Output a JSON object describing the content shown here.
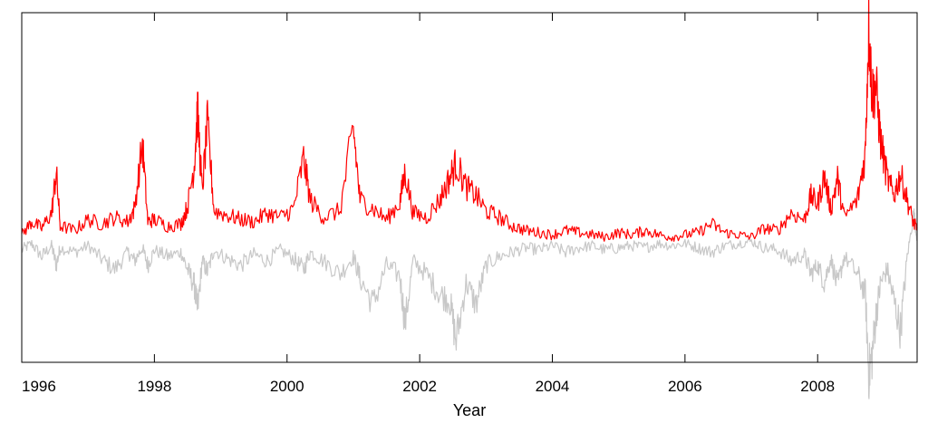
{
  "chart_data": {
    "type": "line",
    "title": "",
    "xlabel": "Year",
    "ylabel": "",
    "xlim": [
      1996,
      2009.5
    ],
    "ylim": [
      -1.0,
      1.0
    ],
    "grid": false,
    "legend": "none",
    "x_ticks": [
      1996,
      1998,
      2000,
      2002,
      2004,
      2006,
      2008
    ],
    "x_tick_labels": [
      "1996",
      "1998",
      "2000",
      "2002",
      "2004",
      "2006",
      "2008"
    ],
    "y_ticks_shown": false,
    "colors": {
      "series_a": "#ff0000",
      "series_b": "#c8c8c8",
      "axes": "#000000"
    },
    "series": [
      {
        "color": "#ff0000",
        "points": [
          [
            1996.0,
            0.02
          ],
          [
            1996.15,
            0.08
          ],
          [
            1996.3,
            0.05
          ],
          [
            1996.45,
            0.12
          ],
          [
            1996.52,
            0.31
          ],
          [
            1996.58,
            0.06
          ],
          [
            1996.8,
            0.04
          ],
          [
            1997.0,
            0.09
          ],
          [
            1997.2,
            0.07
          ],
          [
            1997.4,
            0.1
          ],
          [
            1997.6,
            0.08
          ],
          [
            1997.7,
            0.14
          ],
          [
            1997.82,
            0.44
          ],
          [
            1997.9,
            0.08
          ],
          [
            1998.0,
            0.09
          ],
          [
            1998.2,
            0.06
          ],
          [
            1998.4,
            0.07
          ],
          [
            1998.5,
            0.15
          ],
          [
            1998.6,
            0.34
          ],
          [
            1998.65,
            0.59
          ],
          [
            1998.72,
            0.22
          ],
          [
            1998.8,
            0.53
          ],
          [
            1998.9,
            0.13
          ],
          [
            1999.1,
            0.11
          ],
          [
            1999.3,
            0.09
          ],
          [
            1999.5,
            0.08
          ],
          [
            1999.7,
            0.12
          ],
          [
            1999.9,
            0.1
          ],
          [
            2000.1,
            0.14
          ],
          [
            2000.25,
            0.37
          ],
          [
            2000.35,
            0.18
          ],
          [
            2000.55,
            0.1
          ],
          [
            2000.8,
            0.13
          ],
          [
            2001.0,
            0.51
          ],
          [
            2001.1,
            0.18
          ],
          [
            2001.3,
            0.14
          ],
          [
            2001.5,
            0.09
          ],
          [
            2001.7,
            0.17
          ],
          [
            2001.78,
            0.31
          ],
          [
            2001.9,
            0.12
          ],
          [
            2002.1,
            0.1
          ],
          [
            2002.3,
            0.18
          ],
          [
            2002.45,
            0.28
          ],
          [
            2002.55,
            0.35
          ],
          [
            2002.7,
            0.24
          ],
          [
            2002.85,
            0.2
          ],
          [
            2003.0,
            0.13
          ],
          [
            2003.2,
            0.1
          ],
          [
            2003.4,
            0.06
          ],
          [
            2003.6,
            0.04
          ],
          [
            2003.8,
            0.03
          ],
          [
            2004.0,
            0.02
          ],
          [
            2004.2,
            0.04
          ],
          [
            2004.4,
            0.03
          ],
          [
            2004.6,
            0.02
          ],
          [
            2004.8,
            0.01
          ],
          [
            2005.0,
            0.03
          ],
          [
            2005.2,
            0.02
          ],
          [
            2005.4,
            0.04
          ],
          [
            2005.6,
            0.02
          ],
          [
            2005.8,
            0.01
          ],
          [
            2006.0,
            0.02
          ],
          [
            2006.2,
            0.03
          ],
          [
            2006.4,
            0.07
          ],
          [
            2006.6,
            0.03
          ],
          [
            2006.8,
            0.02
          ],
          [
            2007.0,
            0.01
          ],
          [
            2007.2,
            0.05
          ],
          [
            2007.4,
            0.04
          ],
          [
            2007.6,
            0.12
          ],
          [
            2007.8,
            0.09
          ],
          [
            2007.9,
            0.2
          ],
          [
            2008.0,
            0.16
          ],
          [
            2008.1,
            0.29
          ],
          [
            2008.2,
            0.14
          ],
          [
            2008.3,
            0.28
          ],
          [
            2008.4,
            0.1
          ],
          [
            2008.6,
            0.18
          ],
          [
            2008.72,
            0.4
          ],
          [
            2008.77,
            1.0
          ],
          [
            2008.82,
            0.67
          ],
          [
            2008.88,
            0.7
          ],
          [
            2008.95,
            0.45
          ],
          [
            2009.05,
            0.28
          ],
          [
            2009.15,
            0.2
          ],
          [
            2009.25,
            0.3
          ],
          [
            2009.35,
            0.18
          ],
          [
            2009.45,
            0.07
          ],
          [
            2009.5,
            0.05
          ]
        ]
      },
      {
        "color": "#c8c8c8",
        "points": [
          [
            1996.0,
            -0.05
          ],
          [
            1996.15,
            -0.02
          ],
          [
            1996.3,
            -0.08
          ],
          [
            1996.45,
            -0.03
          ],
          [
            1996.52,
            -0.12
          ],
          [
            1996.58,
            -0.04
          ],
          [
            1996.8,
            -0.06
          ],
          [
            1997.0,
            -0.03
          ],
          [
            1997.2,
            -0.09
          ],
          [
            1997.4,
            -0.14
          ],
          [
            1997.6,
            -0.06
          ],
          [
            1997.7,
            -0.1
          ],
          [
            1997.82,
            -0.04
          ],
          [
            1997.9,
            -0.12
          ],
          [
            1998.0,
            -0.05
          ],
          [
            1998.2,
            -0.08
          ],
          [
            1998.4,
            -0.06
          ],
          [
            1998.5,
            -0.14
          ],
          [
            1998.6,
            -0.21
          ],
          [
            1998.65,
            -0.33
          ],
          [
            1998.72,
            -0.1
          ],
          [
            1998.8,
            -0.15
          ],
          [
            1998.9,
            -0.05
          ],
          [
            1999.1,
            -0.09
          ],
          [
            1999.3,
            -0.12
          ],
          [
            1999.5,
            -0.07
          ],
          [
            1999.7,
            -0.1
          ],
          [
            1999.9,
            -0.05
          ],
          [
            2000.1,
            -0.09
          ],
          [
            2000.25,
            -0.14
          ],
          [
            2000.35,
            -0.06
          ],
          [
            2000.55,
            -0.1
          ],
          [
            2000.8,
            -0.16
          ],
          [
            2001.0,
            -0.08
          ],
          [
            2001.1,
            -0.18
          ],
          [
            2001.3,
            -0.3
          ],
          [
            2001.5,
            -0.12
          ],
          [
            2001.7,
            -0.17
          ],
          [
            2001.78,
            -0.39
          ],
          [
            2001.9,
            -0.1
          ],
          [
            2002.1,
            -0.16
          ],
          [
            2002.3,
            -0.25
          ],
          [
            2002.45,
            -0.28
          ],
          [
            2002.55,
            -0.47
          ],
          [
            2002.7,
            -0.2
          ],
          [
            2002.85,
            -0.3
          ],
          [
            2003.0,
            -0.12
          ],
          [
            2003.2,
            -0.08
          ],
          [
            2003.4,
            -0.06
          ],
          [
            2003.6,
            -0.04
          ],
          [
            2003.8,
            -0.05
          ],
          [
            2004.0,
            -0.03
          ],
          [
            2004.2,
            -0.06
          ],
          [
            2004.4,
            -0.04
          ],
          [
            2004.6,
            -0.03
          ],
          [
            2004.8,
            -0.05
          ],
          [
            2005.0,
            -0.04
          ],
          [
            2005.2,
            -0.03
          ],
          [
            2005.4,
            -0.04
          ],
          [
            2005.6,
            -0.02
          ],
          [
            2005.8,
            -0.03
          ],
          [
            2006.0,
            -0.02
          ],
          [
            2006.2,
            -0.04
          ],
          [
            2006.4,
            -0.06
          ],
          [
            2006.6,
            -0.03
          ],
          [
            2006.8,
            -0.02
          ],
          [
            2007.0,
            -0.01
          ],
          [
            2007.2,
            -0.04
          ],
          [
            2007.4,
            -0.05
          ],
          [
            2007.6,
            -0.1
          ],
          [
            2007.8,
            -0.07
          ],
          [
            2007.9,
            -0.16
          ],
          [
            2008.0,
            -0.12
          ],
          [
            2008.1,
            -0.2
          ],
          [
            2008.2,
            -0.09
          ],
          [
            2008.3,
            -0.22
          ],
          [
            2008.4,
            -0.08
          ],
          [
            2008.6,
            -0.16
          ],
          [
            2008.72,
            -0.25
          ],
          [
            2008.77,
            -0.62
          ],
          [
            2008.82,
            -0.54
          ],
          [
            2008.88,
            -0.35
          ],
          [
            2008.95,
            -0.2
          ],
          [
            2009.05,
            -0.14
          ],
          [
            2009.15,
            -0.28
          ],
          [
            2009.25,
            -0.42
          ],
          [
            2009.35,
            -0.08
          ],
          [
            2009.45,
            0.12
          ],
          [
            2009.5,
            0.0
          ]
        ]
      }
    ]
  }
}
